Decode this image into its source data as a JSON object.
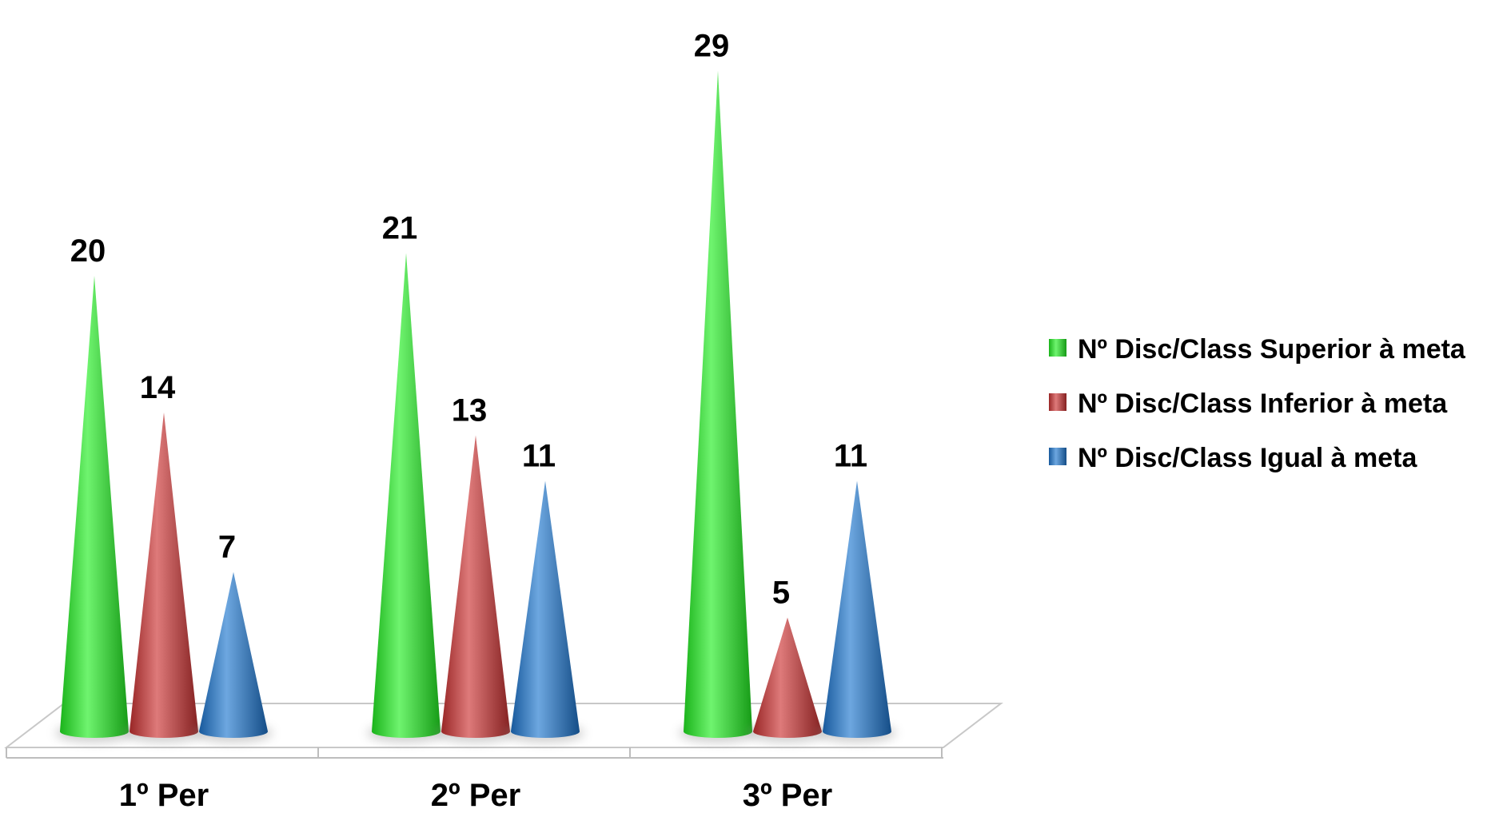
{
  "chart_data": {
    "type": "bar",
    "style": "3d-cone",
    "categories": [
      "1º Per",
      "2º Per",
      "3º Per"
    ],
    "series": [
      {
        "name": "Nº Disc/Class Superior à meta",
        "color": "#22ee22",
        "values": [
          20,
          21,
          29
        ]
      },
      {
        "name": "Nº Disc/Class Inferior à meta",
        "color": "#cc3333",
        "values": [
          14,
          13,
          5
        ]
      },
      {
        "name": "Nº Disc/Class Igual à meta",
        "color": "#1f77d0",
        "values": [
          7,
          11,
          11
        ]
      }
    ],
    "title": "",
    "xlabel": "",
    "ylabel": "",
    "ylim": [
      0,
      30
    ],
    "grid": false,
    "data_labels": true,
    "legend": "right"
  }
}
